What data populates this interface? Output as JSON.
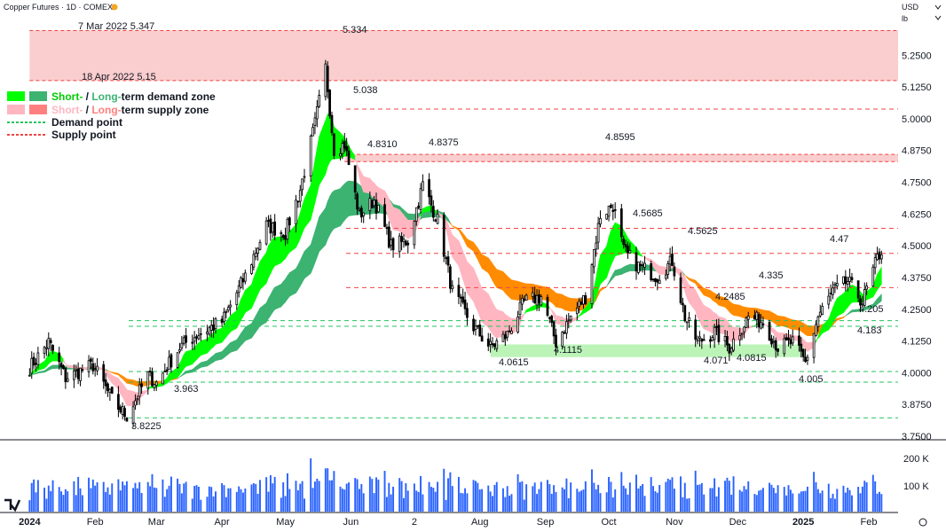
{
  "header": {
    "title": "Copper Futures · 1D · COMEX",
    "currency": "USD",
    "unit": "lb"
  },
  "legend": {
    "demand_short": "Short-",
    "demand_sep": " / ",
    "demand_long": "Long-",
    "demand_rest": "term demand zone",
    "supply_short": "Short-",
    "supply_sep": " / ",
    "supply_long": "Long-",
    "supply_rest": "term supply zone",
    "demand_point": "Demand point",
    "supply_point": "Supply point"
  },
  "colors": {
    "up": "#ffffff",
    "down": "#000000",
    "short_demand": "#00ff00",
    "long_demand": "#3cb371",
    "short_supply": "#ffb6c1",
    "long_supply": "#ff7f7f",
    "ma_orange": "#ff8c00",
    "demand_line": "#22c55e",
    "supply_line": "#ef4444"
  },
  "chart_data": {
    "type": "candlestick",
    "title": "Copper Futures · 1D · COMEX",
    "ylim": [
      3.75,
      5.35
    ],
    "y_ticks": [
      "5.2500",
      "5.1250",
      "5.0000",
      "4.8750",
      "4.7500",
      "4.6250",
      "4.5000",
      "4.3750",
      "4.2500",
      "4.1250",
      "4.0000",
      "3.8750",
      "3.7500"
    ],
    "x_ticks": [
      "2024",
      "Feb",
      "Mar",
      "Apr",
      "May",
      "Jun",
      "2",
      "Aug",
      "Sep",
      "Oct",
      "Nov",
      "Dec",
      "2025",
      "Feb"
    ],
    "volume_ticks": [
      "200 K",
      "100 K"
    ],
    "anchors": [
      [
        "2024-01-01",
        4.02
      ],
      [
        "2024-01-10",
        4.12
      ],
      [
        "2024-01-18",
        3.98
      ],
      [
        "2024-01-31",
        4.03
      ],
      [
        "2024-02-10",
        3.88
      ],
      [
        "2024-02-16",
        3.83
      ],
      [
        "2024-02-26",
        3.99
      ],
      [
        "2024-03-01",
        3.96
      ],
      [
        "2024-03-12",
        4.1
      ],
      [
        "2024-03-20",
        4.15
      ],
      [
        "2024-04-01",
        4.2
      ],
      [
        "2024-04-12",
        4.38
      ],
      [
        "2024-04-22",
        4.58
      ],
      [
        "2024-05-01",
        4.55
      ],
      [
        "2024-05-08",
        4.72
      ],
      [
        "2024-05-15",
        4.98
      ],
      [
        "2024-05-20",
        5.2
      ],
      [
        "2024-05-24",
        4.88
      ],
      [
        "2024-05-29",
        4.9
      ],
      [
        "2024-06-05",
        4.62
      ],
      [
        "2024-06-12",
        4.68
      ],
      [
        "2024-06-20",
        4.5
      ],
      [
        "2024-06-28",
        4.52
      ],
      [
        "2024-07-05",
        4.74
      ],
      [
        "2024-07-12",
        4.6
      ],
      [
        "2024-07-19",
        4.32
      ],
      [
        "2024-07-29",
        4.18
      ],
      [
        "2024-08-06",
        4.1
      ],
      [
        "2024-08-14",
        4.15
      ],
      [
        "2024-08-22",
        4.28
      ],
      [
        "2024-08-30",
        4.3
      ],
      [
        "2024-09-06",
        4.12
      ],
      [
        "2024-09-13",
        4.22
      ],
      [
        "2024-09-20",
        4.3
      ],
      [
        "2024-09-27",
        4.62
      ],
      [
        "2024-10-03",
        4.66
      ],
      [
        "2024-10-08",
        4.48
      ],
      [
        "2024-10-15",
        4.42
      ],
      [
        "2024-10-24",
        4.38
      ],
      [
        "2024-10-31",
        4.44
      ],
      [
        "2024-11-06",
        4.22
      ],
      [
        "2024-11-12",
        4.12
      ],
      [
        "2024-11-20",
        4.16
      ],
      [
        "2024-11-27",
        4.1
      ],
      [
        "2024-12-06",
        4.22
      ],
      [
        "2024-12-13",
        4.2
      ],
      [
        "2024-12-20",
        4.1
      ],
      [
        "2024-12-27",
        4.12
      ],
      [
        "2025-01-02",
        4.04
      ],
      [
        "2025-01-08",
        4.22
      ],
      [
        "2025-01-15",
        4.32
      ],
      [
        "2025-01-22",
        4.36
      ],
      [
        "2025-01-29",
        4.28
      ],
      [
        "2025-02-05",
        4.45
      ],
      [
        "2025-02-07",
        4.48
      ]
    ],
    "annotations": [
      {
        "text": "7 Mar 2022 5.347"
      },
      {
        "text": "18 Apr 2022 5.15"
      },
      {
        "text": "5.334"
      },
      {
        "text": "5.038"
      },
      {
        "text": "4.8310"
      },
      {
        "text": "4.8375"
      },
      {
        "text": "4.8595"
      },
      {
        "text": "4.5685"
      },
      {
        "text": "4.5625"
      },
      {
        "text": "4.47"
      },
      {
        "text": "4.335"
      },
      {
        "text": "4.2485"
      },
      {
        "text": "4.205"
      },
      {
        "text": "4.183"
      },
      {
        "text": "3.963"
      },
      {
        "text": "3.8225"
      },
      {
        "text": "4.0615"
      },
      {
        "text": "4.1115"
      },
      {
        "text": "4.071"
      },
      {
        "text": "4.0815"
      },
      {
        "text": "4.005"
      }
    ],
    "supply_zones": [
      {
        "from": "2024-01-01",
        "to": "2025-02-14",
        "low": 5.15,
        "high": 5.347
      },
      {
        "from": "2024-05-29",
        "to": "2025-02-14",
        "low": 4.831,
        "high": 4.8595
      }
    ],
    "demand_zones": [
      {
        "from": "2024-08-06",
        "to": "2025-01-02",
        "low": 4.0615,
        "high": 4.1115
      }
    ],
    "supply_points": [
      5.038,
      4.5685,
      4.47,
      4.335
    ],
    "demand_points": [
      4.205,
      4.183,
      4.005,
      3.963,
      3.8225
    ]
  }
}
